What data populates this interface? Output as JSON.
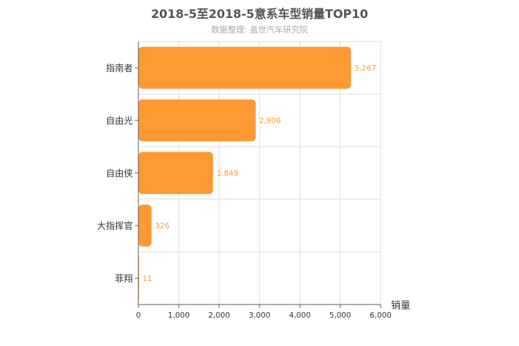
{
  "chart_data": {
    "type": "bar",
    "orientation": "horizontal",
    "title": "2018-5至2018-5意系车型销量TOP10",
    "subtitle": "数据整理: 盖世汽车研究院",
    "categories": [
      "指南者",
      "自由光",
      "自由侠",
      "大指挥官",
      "菲翔"
    ],
    "values": [
      5267,
      2906,
      1849,
      326,
      11
    ],
    "value_labels": [
      "5,267",
      "2,906",
      "1,849",
      "326",
      "11"
    ],
    "xlabel": "销量",
    "ylabel": "",
    "xlim": [
      0,
      6000
    ],
    "x_ticks": [
      0,
      1000,
      2000,
      3000,
      4000,
      5000,
      6000
    ],
    "x_tick_labels": [
      "0",
      "1,000",
      "2,000",
      "3,000",
      "4,000",
      "5,000",
      "6,000"
    ],
    "grid": true,
    "legend": "none",
    "colors": {
      "bar": "#ff9933",
      "value_label": "#ff9933",
      "grid": "#dddddd",
      "axis": "#555555",
      "title": "#555555",
      "subtitle": "#aaaaaa",
      "text": "#333333"
    }
  }
}
